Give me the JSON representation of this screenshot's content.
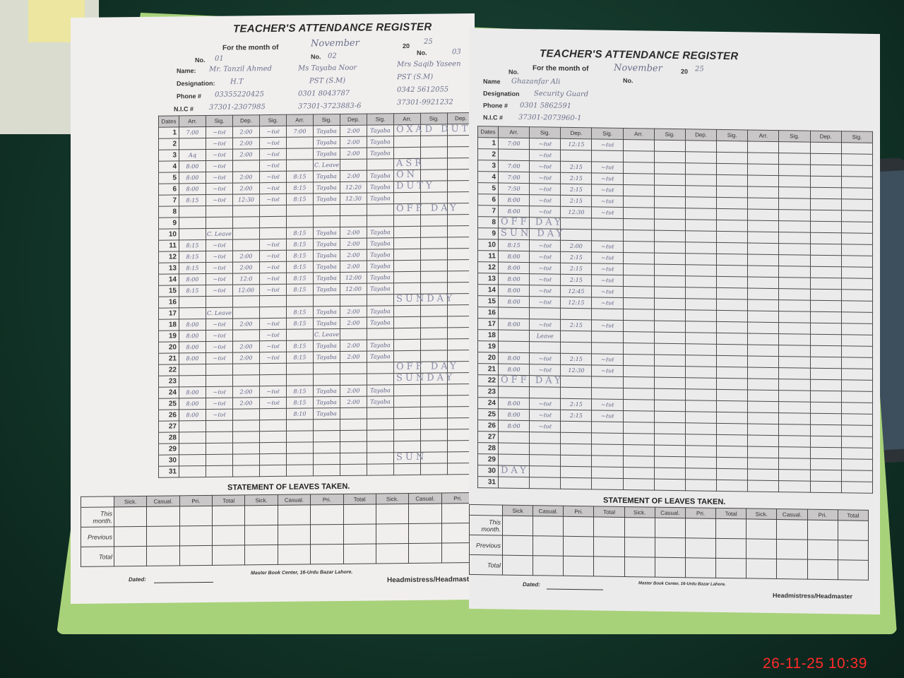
{
  "timestamp": "26-11-25  10:39",
  "left_page": {
    "title": "TEACHER'S ATTENDANCE REGISTER",
    "month_label": "For the month of",
    "month_value": "November",
    "year_label": "20",
    "year_value": "25",
    "no_label": "No.",
    "field_labels": {
      "name": "Name:",
      "designation": "Designation:",
      "phone": "Phone #",
      "nic": "N.I.C #"
    },
    "teachers": [
      {
        "no": "01",
        "name": "Mr. Tanzil Ahmed",
        "designation": "H.T",
        "phone": "03355220425",
        "nic": "37301-2307985"
      },
      {
        "no": "02",
        "name": "Ms Tayaba Noor",
        "designation": "PST (S.M)",
        "phone": "0301 8043787",
        "nic": "37301-3723883-6"
      },
      {
        "no": "03",
        "name": "Mrs Saqib Yaseen",
        "designation": "PST (S.M)",
        "phone": "0342 5612055",
        "nic": "37301-9921232"
      }
    ],
    "columns": [
      "Dates",
      "Arr.",
      "Sig.",
      "Dep.",
      "Sig.",
      "Arr.",
      "Sig.",
      "Dep.",
      "Sig.",
      "Arr.",
      "Sig.",
      "Dep."
    ],
    "rows": {
      "1": [
        "7:00",
        "sig",
        "2:00",
        "sig",
        "7:00",
        "Tayaba",
        "2:00",
        "Tayaba"
      ],
      "2": [
        "",
        "sig",
        "2:00",
        "sig",
        "",
        "Tayaba",
        "2:00",
        "Tayaba"
      ],
      "3": [
        "Aq",
        "sig",
        "2:00",
        "sig",
        "",
        "Tayaba",
        "2:00",
        "Tayaba"
      ],
      "4": [
        "8:00",
        "sig",
        "",
        "sig",
        "",
        "C. Leave",
        "",
        ""
      ],
      "5": [
        "8:00",
        "sig",
        "2:00",
        "sig",
        "8:15",
        "Tayaba",
        "2:00",
        "Tayaba"
      ],
      "6": [
        "8:00",
        "sig",
        "2:00",
        "sig",
        "8:15",
        "Tayaba",
        "12:20",
        "Tayaba"
      ],
      "7": [
        "8:15",
        "sig",
        "12:30",
        "sig",
        "8:15",
        "Tayaba",
        "12:30",
        "Tayaba"
      ],
      "10": [
        "",
        "C. Leave",
        "",
        "",
        "8:15",
        "Tayaba",
        "2:00",
        "Tayaba"
      ],
      "11": [
        "8:15",
        "sig",
        "",
        "sig",
        "8:15",
        "Tayaba",
        "2:00",
        "Tayaba"
      ],
      "12": [
        "8:15",
        "sig",
        "2:00",
        "sig",
        "8:15",
        "Tayaba",
        "2:00",
        "Tayaba"
      ],
      "13": [
        "8:15",
        "sig",
        "2:00",
        "sig",
        "8:15",
        "Tayaba",
        "2:00",
        "Tayaba"
      ],
      "14": [
        "8:00",
        "sig",
        "12:0",
        "sig",
        "8:15",
        "Tayaba",
        "12:00",
        "Tayaba"
      ],
      "15": [
        "8:15",
        "sig",
        "12:00",
        "sig",
        "8:15",
        "Tayaba",
        "12:00",
        "Tayaba"
      ],
      "17": [
        "",
        "C. Leave",
        "",
        "",
        "8:15",
        "Tayaba",
        "2:00",
        "Tayaba"
      ],
      "18": [
        "8:00",
        "sig",
        "2:00",
        "sig",
        "8:15",
        "Tayaba",
        "2:00",
        "Tayaba"
      ],
      "19": [
        "8:00",
        "sig",
        "",
        "sig",
        "",
        "C. Leave",
        "",
        ""
      ],
      "20": [
        "8:00",
        "sig",
        "2:00",
        "sig",
        "8:15",
        "Tayaba",
        "2:00",
        "Tayaba"
      ],
      "21": [
        "8:00",
        "sig",
        "2:00",
        "sig",
        "8:15",
        "Tayaba",
        "2:00",
        "Tayaba"
      ],
      "24": [
        "8:00",
        "sig",
        "2:00",
        "sig",
        "8:15",
        "Tayaba",
        "2:00",
        "Tayaba"
      ],
      "25": [
        "8:00",
        "sig",
        "2:00",
        "sig",
        "8:15",
        "Tayaba",
        "2:00",
        "Tayaba"
      ],
      "26": [
        "8:00",
        "sig",
        "",
        "",
        "8:10",
        "Tayaba",
        "",
        ""
      ]
    },
    "notes": [
      {
        "day": "1",
        "text": "OXAD DUTY"
      },
      {
        "day": "4",
        "text": "ASR"
      },
      {
        "day": "5",
        "text": "ON"
      },
      {
        "day": "6",
        "text": "DUTY"
      },
      {
        "day": "8",
        "text": "OFF DAY"
      },
      {
        "day": "16",
        "text": "SUNDAY"
      },
      {
        "day": "22",
        "text": "OFF DAY"
      },
      {
        "day": "23",
        "text": "SUNDAY"
      },
      {
        "day": "30",
        "text": "SUN"
      }
    ],
    "statement_title": "STATEMENT OF LEAVES TAKEN.",
    "leave_columns": [
      "Sick.",
      "Casual.",
      "Pri.",
      "Total",
      "Sick.",
      "Casual.",
      "Pri.",
      "Total",
      "Sick.",
      "Casual.",
      "Pri."
    ],
    "leave_rows": [
      "This month.",
      "Previous",
      "Total"
    ],
    "dated_label": "Dated:",
    "publisher": "Master Book Center, 16-Urdu Bazar Lahore.",
    "signatory": "Headmistress/Headmaster"
  },
  "right_page": {
    "title": "TEACHER'S ATTENDANCE REGISTER",
    "month_label": "For the month of",
    "month_value": "November",
    "year_label": "20",
    "year_value": "25",
    "no_label": "No.",
    "field_labels": {
      "name": "Name",
      "designation": "Designation",
      "phone": "Phone #",
      "nic": "N.I.C #"
    },
    "teacher": {
      "name": "Ghazanfar Ali",
      "designation": "Security Guard",
      "phone": "0301 5862591",
      "nic": "37301-2073960-1"
    },
    "columns": [
      "Dates",
      "Arr.",
      "Sig.",
      "Dep.",
      "Sig.",
      "Arr.",
      "Sig.",
      "Dep.",
      "Sig.",
      "Arr.",
      "Sig.",
      "Dep.",
      "Sig."
    ],
    "rows": {
      "1": [
        "7:00",
        "sig",
        "12:15",
        "sig"
      ],
      "2": [
        "",
        "sig",
        "",
        ""
      ],
      "3": [
        "7:00",
        "sig",
        "2:15",
        "sig"
      ],
      "4": [
        "7:00",
        "sig",
        "2:15",
        "sig"
      ],
      "5": [
        "7:50",
        "sig",
        "2:15",
        "sig"
      ],
      "6": [
        "8:00",
        "sig",
        "2:15",
        "sig"
      ],
      "7": [
        "8:00",
        "sig",
        "12:30",
        "sig"
      ],
      "10": [
        "8:15",
        "sig",
        "2:00",
        "sig"
      ],
      "11": [
        "8:00",
        "sig",
        "2:15",
        "sig"
      ],
      "12": [
        "8:00",
        "sig",
        "2:15",
        "sig"
      ],
      "13": [
        "8:00",
        "sig",
        "2:15",
        "sig"
      ],
      "14": [
        "8:00",
        "sig",
        "12:45",
        "sig"
      ],
      "15": [
        "8:00",
        "sig",
        "12:15",
        "sig"
      ],
      "17": [
        "8:00",
        "sig",
        "2:15",
        "sig"
      ],
      "18": [
        "",
        "Leave",
        "",
        ""
      ],
      "20": [
        "8:00",
        "sig",
        "2:15",
        "sig"
      ],
      "21": [
        "8:00",
        "sig",
        "12:30",
        "sig"
      ],
      "24": [
        "8:00",
        "sig",
        "2:15",
        "sig"
      ],
      "25": [
        "8:00",
        "sig",
        "2:15",
        "sig"
      ],
      "26": [
        "8:00",
        "sig",
        "",
        ""
      ]
    },
    "notes": [
      {
        "day": "8",
        "text": "OFF DAY"
      },
      {
        "day": "9",
        "text": "SUN DAY"
      },
      {
        "day": "22",
        "text": "OFF DAY"
      },
      {
        "day": "30",
        "text": "DAY"
      }
    ],
    "statement_title": "STATEMENT OF LEAVES TAKEN.",
    "leave_columns": [
      "Sick",
      "Casual.",
      "Pri.",
      "Total",
      "Sick.",
      "Casual.",
      "Pri.",
      "Total",
      "Sick.",
      "Casual.",
      "Pri.",
      "Total"
    ],
    "leave_rows": [
      "This month.",
      "Previous",
      "Total"
    ],
    "dated_label": "Dated:",
    "publisher": "Master Book Center, 16-Urdu Bazar Lahore.",
    "signatory": "Headmistress/Headmaster"
  },
  "colors": {
    "background": "#123428",
    "cover": "#a8d27a",
    "paper": "#f1efee",
    "header_fill": "#c9c7c8",
    "ink": "#5d6385",
    "timestamp": "#ff2a2a"
  }
}
